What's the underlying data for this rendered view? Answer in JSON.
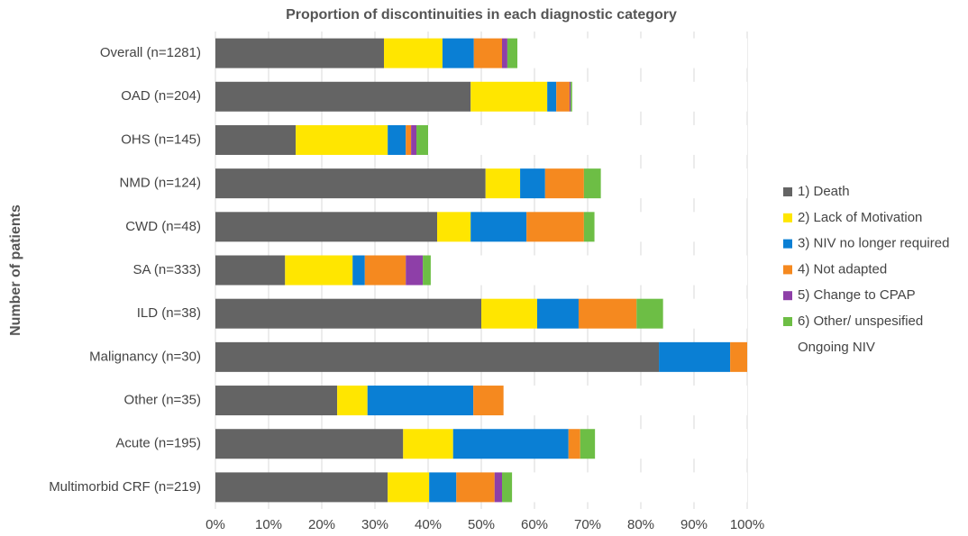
{
  "chart_data": {
    "type": "stacked-barh",
    "title": "Proportion of discontinuities in each diagnostic category",
    "y_label": "Number of patients",
    "categories": [
      "Overall (n=1281)",
      "OAD (n=204)",
      "OHS (n=145)",
      "NMD (n=124)",
      "CWD (n=48)",
      "SA (n=333)",
      "ILD (n=38)",
      "Malignancy (n=30)",
      "Other (n=35)",
      "Acute (n=195)",
      "Multimorbid CRF (n=219)"
    ],
    "series": [
      {
        "name": "1) Death",
        "color": "#646464",
        "values": [
          31.7,
          48.0,
          15.1,
          50.8,
          41.7,
          13.1,
          50.0,
          83.4,
          22.9,
          35.3,
          32.4
        ]
      },
      {
        "name": "2) Lack of Motivation",
        "color": "#ffe600",
        "values": [
          11.0,
          14.4,
          17.3,
          6.5,
          6.3,
          12.7,
          10.5,
          0,
          5.7,
          9.4,
          7.8
        ]
      },
      {
        "name": "3) NIV no longer required",
        "color": "#0a7fd4",
        "values": [
          5.9,
          1.7,
          3.4,
          4.7,
          10.5,
          2.3,
          7.8,
          13.4,
          19.9,
          21.7,
          5.1
        ]
      },
      {
        "name": "4) Not adapted",
        "color": "#f5891f",
        "values": [
          5.3,
          2.5,
          1.0,
          7.3,
          10.8,
          7.7,
          10.9,
          3.2,
          5.7,
          2.2,
          7.2
        ]
      },
      {
        "name": "5) Change to CPAP",
        "color": "#8e3fa8",
        "values": [
          1.0,
          0.2,
          1.0,
          0,
          0,
          3.2,
          0,
          0,
          0,
          0,
          1.4
        ]
      },
      {
        "name": "6) Other/ unspesified",
        "color": "#6dbe45",
        "values": [
          1.9,
          0.3,
          2.2,
          3.2,
          2.0,
          1.5,
          5.0,
          0,
          0,
          2.8,
          1.9
        ]
      },
      {
        "name": "Ongoing NIV",
        "color": "#ffffff",
        "values": [
          43.2,
          32.9,
          60.0,
          27.5,
          28.6,
          59.5,
          15.8,
          0,
          45.8,
          28.6,
          44.2
        ]
      }
    ],
    "xlim": [
      0,
      100
    ],
    "xticks": [
      {
        "value": 0,
        "label": "0%"
      },
      {
        "value": 10,
        "label": "10%"
      },
      {
        "value": 20,
        "label": "20%"
      },
      {
        "value": 30,
        "label": "30%"
      },
      {
        "value": 40,
        "label": "40%"
      },
      {
        "value": 50,
        "label": "50%"
      },
      {
        "value": 60,
        "label": "60%"
      },
      {
        "value": 70,
        "label": "70%"
      },
      {
        "value": 80,
        "label": "80%"
      },
      {
        "value": 90,
        "label": "90%"
      },
      {
        "value": 100,
        "label": "100%"
      }
    ],
    "grid": true,
    "legend": "right"
  }
}
